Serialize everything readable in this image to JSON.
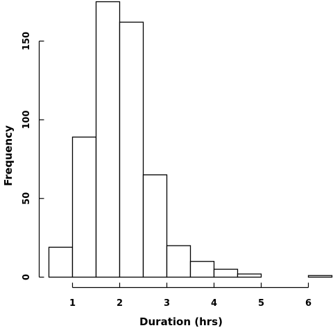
{
  "chart_data": {
    "type": "bar",
    "subtype": "histogram",
    "xlabel": "Duration (hrs)",
    "ylabel": "Frequency",
    "bin_edges": [
      0.5,
      1.0,
      1.5,
      2.0,
      2.5,
      3.0,
      3.5,
      4.0,
      4.5,
      5.0,
      5.5,
      6.0,
      6.5
    ],
    "values": [
      19,
      89,
      175,
      162,
      65,
      20,
      10,
      5,
      2,
      0,
      0,
      1
    ],
    "x_ticks": [
      1,
      2,
      3,
      4,
      5,
      6
    ],
    "y_ticks": [
      0,
      50,
      100,
      150
    ],
    "x_tick_labels": [
      "1",
      "2",
      "3",
      "4",
      "5",
      "6"
    ],
    "y_tick_labels": [
      "0",
      "50",
      "100",
      "150"
    ],
    "xlim": [
      0.5,
      6.5
    ],
    "ylim": [
      0,
      175
    ],
    "grid": false,
    "legend": "none"
  }
}
